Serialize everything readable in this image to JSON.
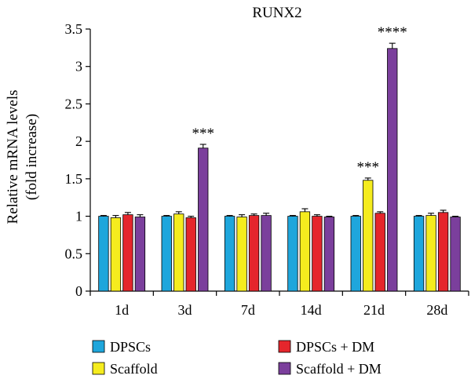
{
  "chart_data": {
    "type": "bar",
    "title": "RUNX2",
    "ylabel_line1": "Relative mRNA levels",
    "ylabel_line2": "(fold increase)",
    "xlabel": "",
    "ylim": [
      0,
      3.5
    ],
    "yticks": [
      "0",
      "0.5",
      "1",
      "1.5",
      "2",
      "2.5",
      "3",
      "3.5"
    ],
    "categories": [
      "1d",
      "3d",
      "7d",
      "14d",
      "21d",
      "28d"
    ],
    "series": [
      {
        "name": "DPSCs",
        "color": "#1ea6dc",
        "values": [
          1.0,
          1.0,
          1.0,
          1.0,
          1.0,
          1.0
        ],
        "errors": [
          0.01,
          0.01,
          0.01,
          0.01,
          0.01,
          0.01
        ]
      },
      {
        "name": "Scaffold",
        "color": "#f5ec1e",
        "values": [
          0.98,
          1.03,
          0.99,
          1.06,
          1.48,
          1.01
        ],
        "errors": [
          0.03,
          0.03,
          0.03,
          0.04,
          0.03,
          0.03
        ]
      },
      {
        "name": "DPSCs + DM",
        "color": "#e5262c",
        "values": [
          1.02,
          0.98,
          1.01,
          1.0,
          1.04,
          1.05
        ],
        "errors": [
          0.03,
          0.02,
          0.02,
          0.02,
          0.02,
          0.03
        ]
      },
      {
        "name": "Scaffold + DM",
        "color": "#7b3f9c",
        "values": [
          0.99,
          1.91,
          1.01,
          0.99,
          3.24,
          0.99
        ],
        "errors": [
          0.03,
          0.05,
          0.03,
          0.01,
          0.07,
          0.01
        ]
      }
    ],
    "annotations": [
      {
        "category_index": 1,
        "series_index": 3,
        "text": "***"
      },
      {
        "category_index": 4,
        "series_index": 1,
        "text": "***"
      },
      {
        "category_index": 4,
        "series_index": 3,
        "text": "****"
      }
    ],
    "legend_position": "bottom",
    "grid": false
  }
}
